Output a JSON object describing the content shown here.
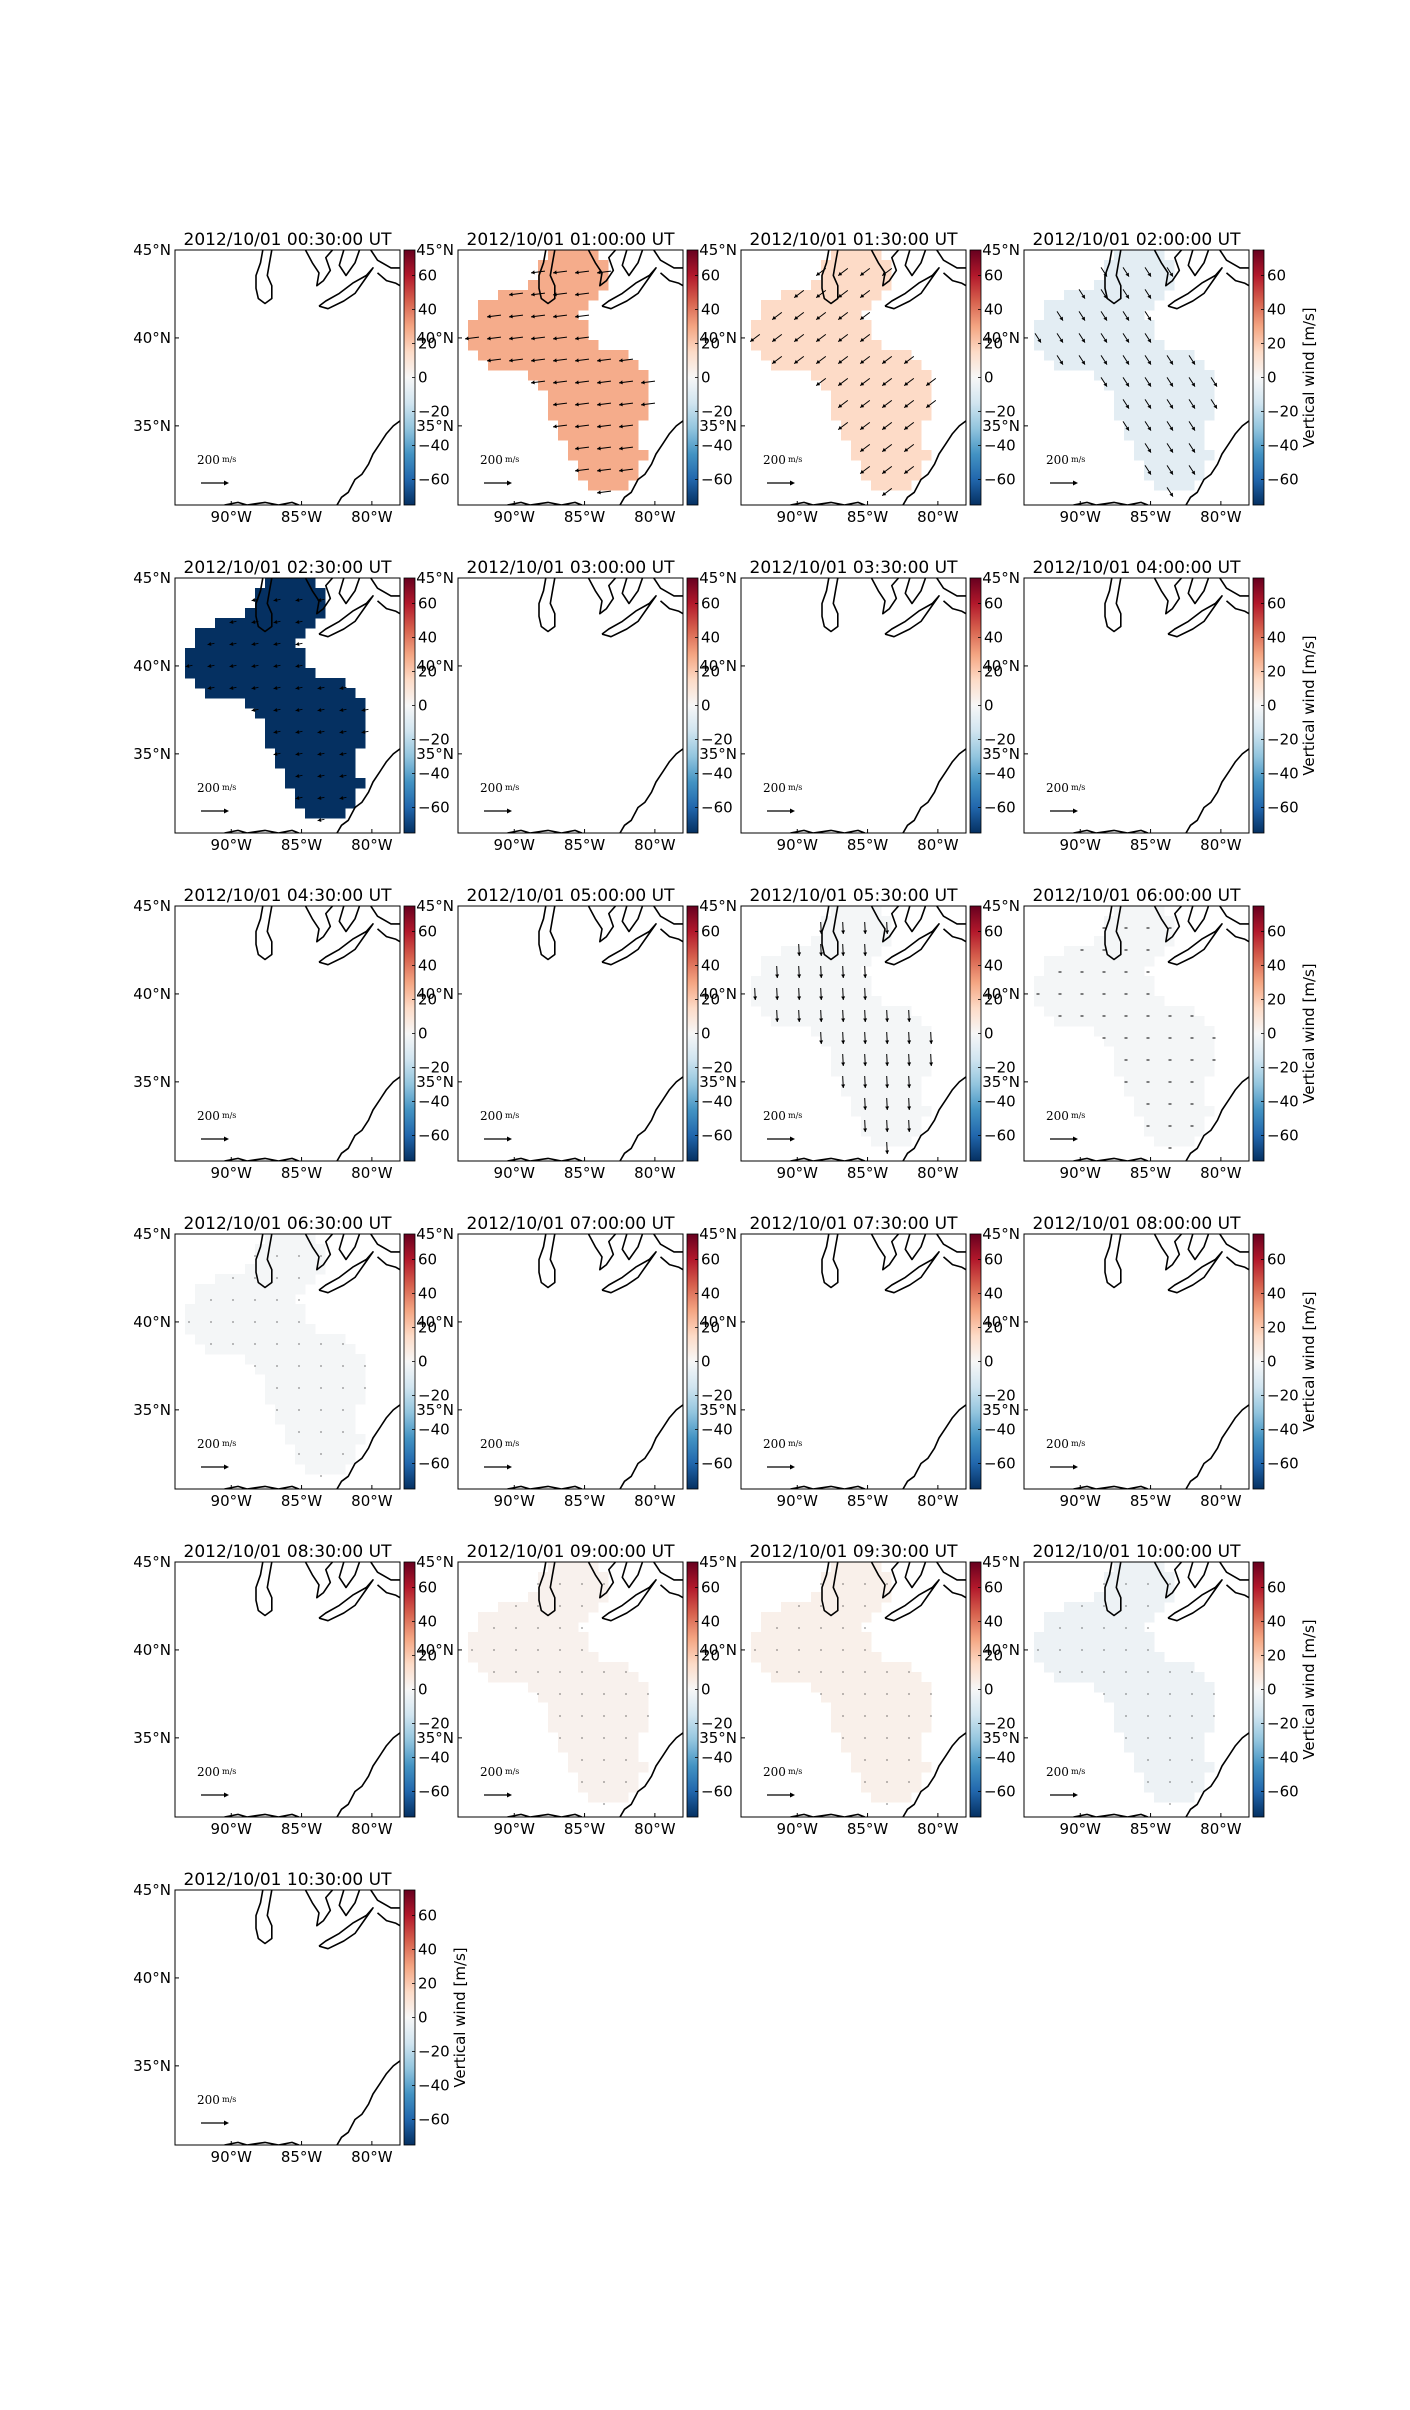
{
  "colors": {
    "coast": "#000000",
    "frame": "#000000",
    "background": "#ffffff"
  },
  "chart_data": {
    "type": "heatmap",
    "colorbar": {
      "label": "Vertical wind [m/s]",
      "range": [
        -75,
        75
      ],
      "ticks": [
        60,
        40,
        20,
        0,
        -20,
        -40,
        -60
      ],
      "tick_labels": [
        "60",
        "40",
        "20",
        "0",
        "−20",
        "−40",
        "−60"
      ],
      "colormap": "RdBu_r"
    },
    "map": {
      "lon_range": [
        -94,
        -78
      ],
      "lat_range": [
        30.5,
        45
      ],
      "lon_ticks": [
        -90,
        -85,
        -80
      ],
      "lon_tick_labels": [
        "90°W",
        "85°W",
        "80°W"
      ],
      "lat_ticks": [
        45,
        40,
        35
      ],
      "lat_tick_labels": [
        "45°N",
        "40°N",
        "35°N"
      ]
    },
    "quiver_key": {
      "value_label": "200",
      "unit_label": "m/s"
    },
    "panels": [
      {
        "title": "2012/10/01 00:30:00 UT",
        "vertical_wind": null,
        "arrows": "none"
      },
      {
        "title": "2012/10/01 01:00:00 UT",
        "vertical_wind": 28,
        "arrows": "w"
      },
      {
        "title": "2012/10/01 01:30:00 UT",
        "vertical_wind": 15,
        "arrows": "sw"
      },
      {
        "title": "2012/10/01 02:00:00 UT",
        "vertical_wind": -8,
        "arrows": "se"
      },
      {
        "title": "2012/10/01 02:30:00 UT",
        "vertical_wind": -75,
        "arrows": "w_small"
      },
      {
        "title": "2012/10/01 03:00:00 UT",
        "vertical_wind": null,
        "arrows": "none"
      },
      {
        "title": "2012/10/01 03:30:00 UT",
        "vertical_wind": null,
        "arrows": "none"
      },
      {
        "title": "2012/10/01 04:00:00 UT",
        "vertical_wind": null,
        "arrows": "none"
      },
      {
        "title": "2012/10/01 04:30:00 UT",
        "vertical_wind": null,
        "arrows": "none"
      },
      {
        "title": "2012/10/01 05:00:00 UT",
        "vertical_wind": null,
        "arrows": "none"
      },
      {
        "title": "2012/10/01 05:30:00 UT",
        "vertical_wind": -1,
        "arrows": "s"
      },
      {
        "title": "2012/10/01 06:00:00 UT",
        "vertical_wind": -1,
        "arrows": "tiny"
      },
      {
        "title": "2012/10/01 06:30:00 UT",
        "vertical_wind": -1,
        "arrows": "dots"
      },
      {
        "title": "2012/10/01 07:00:00 UT",
        "vertical_wind": null,
        "arrows": "none"
      },
      {
        "title": "2012/10/01 07:30:00 UT",
        "vertical_wind": null,
        "arrows": "none"
      },
      {
        "title": "2012/10/01 08:00:00 UT",
        "vertical_wind": null,
        "arrows": "none"
      },
      {
        "title": "2012/10/01 08:30:00 UT",
        "vertical_wind": null,
        "arrows": "none"
      },
      {
        "title": "2012/10/01 09:00:00 UT",
        "vertical_wind": 3,
        "arrows": "dots"
      },
      {
        "title": "2012/10/01 09:30:00 UT",
        "vertical_wind": 4,
        "arrows": "dots"
      },
      {
        "title": "2012/10/01 10:00:00 UT",
        "vertical_wind": -4,
        "arrows": "dots"
      },
      {
        "title": "2012/10/01 10:30:00 UT",
        "vertical_wind": null,
        "arrows": "none"
      }
    ]
  }
}
